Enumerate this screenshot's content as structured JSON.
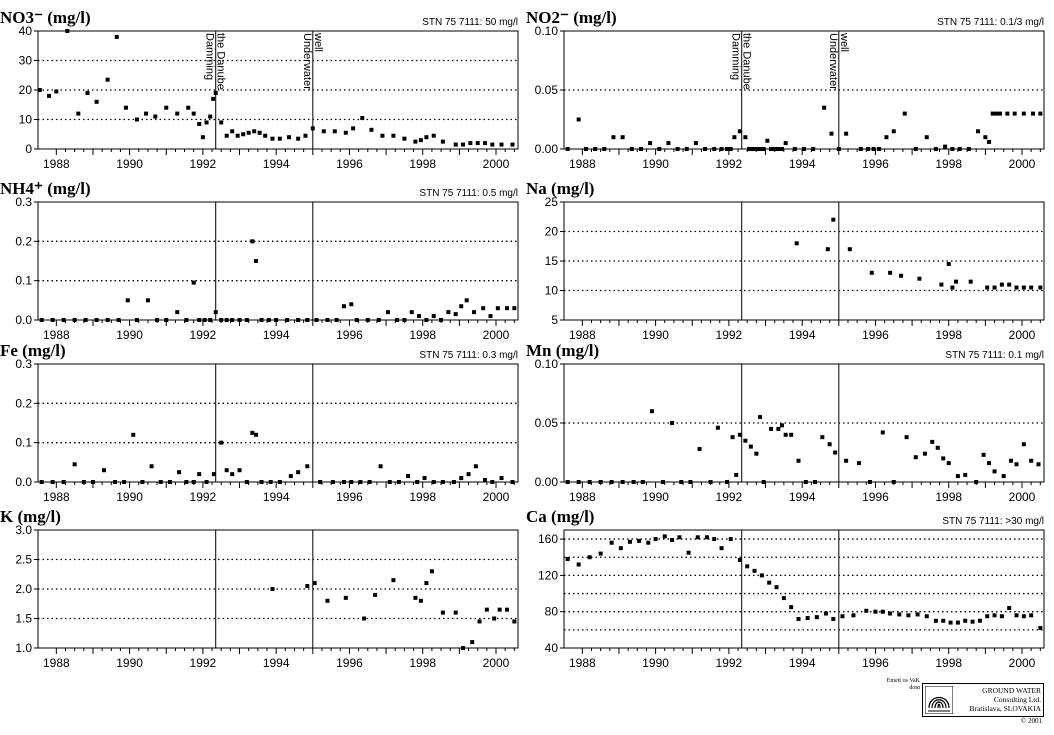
{
  "marker_labels": {
    "damming": "Damming the Danube",
    "well": "Underwater well"
  },
  "footer": {
    "credit": "Emett os VaK dom",
    "company_line1": "GROUND WATER",
    "company_line2": "Consulting Ltd.",
    "company_line3": "Bratislava, SLOVAKIA",
    "copyright": "© 2001",
    "logo_icon": "fingerprint-logo-icon"
  },
  "chart_data": [
    {
      "id": "no3",
      "type": "scatter",
      "title": "NO3⁻ (mg/l)",
      "standard": "STN 75 7111:  50 mg/l",
      "ylim": [
        0,
        40
      ],
      "yticks": [
        0,
        10,
        20,
        30,
        40
      ],
      "ytick_labels": [
        "0",
        "10",
        "20",
        "30",
        "40"
      ],
      "dotted_gridlines": [
        10,
        20,
        30
      ],
      "xlim": [
        1987.5,
        2000.6
      ],
      "xticks": [
        1988,
        1990,
        1992,
        1994,
        1996,
        1998,
        2000
      ],
      "xtick_labels": [
        "1988",
        "1990",
        "1992",
        "1994",
        "1996",
        "1998",
        "2000"
      ],
      "vlines": [
        1992.35,
        1995.0
      ],
      "show_marker_labels": true,
      "x": [
        1987.55,
        1987.8,
        1988.0,
        1988.3,
        1988.6,
        1988.85,
        1989.1,
        1989.4,
        1989.65,
        1989.9,
        1990.2,
        1990.45,
        1990.7,
        1991.0,
        1991.3,
        1991.6,
        1991.75,
        1991.9,
        1992.0,
        1992.1,
        1992.2,
        1992.28,
        1992.35,
        1992.5,
        1992.65,
        1992.8,
        1992.95,
        1993.1,
        1993.25,
        1993.4,
        1993.55,
        1993.7,
        1993.9,
        1994.1,
        1994.35,
        1994.6,
        1994.8,
        1995.0,
        1995.3,
        1995.6,
        1995.9,
        1996.1,
        1996.35,
        1996.6,
        1996.9,
        1997.2,
        1997.5,
        1997.8,
        1997.95,
        1998.1,
        1998.3,
        1998.55,
        1998.9,
        1999.1,
        1999.3,
        1999.5,
        1999.7,
        1999.9,
        2000.15,
        2000.45
      ],
      "y": [
        20,
        18,
        19.5,
        40,
        12,
        19,
        16,
        23.5,
        38,
        14,
        10,
        12,
        11,
        14,
        12,
        14,
        12,
        8.5,
        4,
        9,
        11,
        17,
        19,
        9,
        4.5,
        6,
        4.5,
        5,
        5.5,
        6,
        5.5,
        4.5,
        3.5,
        3.5,
        4,
        3.5,
        4.5,
        7,
        6,
        6,
        5.5,
        7,
        10.5,
        6.5,
        4.5,
        4.5,
        3.5,
        2.5,
        3,
        4,
        4.5,
        2.5,
        1.5,
        1.5,
        2,
        2,
        2,
        1.5,
        1.5,
        1.5
      ]
    },
    {
      "id": "no2",
      "type": "scatter",
      "title": "NO2⁻ (mg/l)",
      "standard": "STN 75 7111:  0.1/3  mg/l",
      "ylim": [
        0,
        0.1
      ],
      "yticks": [
        0,
        0.05,
        0.1
      ],
      "ytick_labels": [
        "0.00",
        "0.05",
        "0.10"
      ],
      "dotted_gridlines": [
        0.05
      ],
      "xlim": [
        1987.5,
        2000.6
      ],
      "xticks": [
        1988,
        1990,
        1992,
        1994,
        1996,
        1998,
        2000
      ],
      "xtick_labels": [
        "1988",
        "1990",
        "1992",
        "1994",
        "1996",
        "1998",
        "2000"
      ],
      "vlines": [
        1992.35,
        1995.0
      ],
      "show_marker_labels": true,
      "x": [
        1987.6,
        1987.9,
        1988.1,
        1988.35,
        1988.6,
        1988.85,
        1989.1,
        1989.35,
        1989.6,
        1989.85,
        1990.1,
        1990.35,
        1990.6,
        1990.85,
        1991.1,
        1991.35,
        1991.6,
        1991.8,
        1991.95,
        1992.05,
        1992.15,
        1992.3,
        1992.45,
        1992.55,
        1992.65,
        1992.75,
        1992.85,
        1992.95,
        1993.05,
        1993.15,
        1993.25,
        1993.35,
        1993.45,
        1993.55,
        1993.8,
        1994.05,
        1994.3,
        1994.6,
        1994.8,
        1995.0,
        1995.2,
        1995.6,
        1995.8,
        1995.95,
        1996.1,
        1996.3,
        1996.5,
        1996.8,
        1997.1,
        1997.4,
        1997.65,
        1997.9,
        1998.1,
        1998.3,
        1998.55,
        1998.8,
        1999.0,
        1999.1,
        1999.2,
        1999.3,
        1999.4,
        1999.6,
        1999.8,
        2000.05,
        2000.3,
        2000.5
      ],
      "y": [
        0.0,
        0.025,
        0.0,
        0.0,
        0.0,
        0.01,
        0.01,
        0.0,
        0.0,
        0.005,
        0.0,
        0.005,
        0.0,
        0.0,
        0.005,
        0.0,
        0.0,
        0.0,
        0.0,
        0.0,
        0.01,
        0.015,
        0.01,
        0.0,
        0.0,
        0.0,
        0.0,
        0.0,
        0.007,
        0.0,
        0.0,
        0.0,
        0.0,
        0.005,
        0.0,
        0.0,
        0.0,
        0.035,
        0.013,
        0.0,
        0.013,
        0.0,
        0.0,
        0.0,
        0.0,
        0.01,
        0.015,
        0.03,
        0.0,
        0.01,
        0.0,
        0.002,
        0.0,
        0.0,
        0.0,
        0.015,
        0.01,
        0.006,
        0.03,
        0.03,
        0.03,
        0.03,
        0.03,
        0.03,
        0.03,
        0.03
      ]
    },
    {
      "id": "nh4",
      "type": "scatter",
      "title": "NH4⁺ (mg/l)",
      "standard": "STN 75 7111:  0.5  mg/l",
      "ylim": [
        0,
        0.3
      ],
      "yticks": [
        0,
        0.1,
        0.2,
        0.3
      ],
      "ytick_labels": [
        "0.0",
        "0.1",
        "0.2",
        "0.3"
      ],
      "dotted_gridlines": [
        0.1,
        0.2
      ],
      "xlim": [
        1987.5,
        2000.6
      ],
      "xticks": [
        1988,
        1990,
        1992,
        1994,
        1996,
        1998,
        2000
      ],
      "xtick_labels": [
        "1988",
        "1990",
        "1992",
        "1994",
        "1996",
        "1998",
        "2000"
      ],
      "vlines": [
        1992.35,
        1995.0
      ],
      "show_marker_labels": false,
      "x": [
        1987.6,
        1987.9,
        1988.2,
        1988.5,
        1988.8,
        1989.1,
        1989.4,
        1989.7,
        1989.95,
        1990.2,
        1990.5,
        1990.75,
        1991.0,
        1991.3,
        1991.55,
        1991.75,
        1991.9,
        1992.05,
        1992.2,
        1992.35,
        1992.5,
        1992.65,
        1992.8,
        1993.0,
        1993.2,
        1993.35,
        1993.45,
        1993.6,
        1993.8,
        1994.0,
        1994.3,
        1994.6,
        1994.85,
        1995.1,
        1995.4,
        1995.65,
        1995.85,
        1996.05,
        1996.2,
        1996.5,
        1996.8,
        1997.05,
        1997.3,
        1997.5,
        1997.7,
        1997.9,
        1998.1,
        1998.3,
        1998.5,
        1998.7,
        1998.9,
        1999.05,
        1999.2,
        1999.4,
        1999.65,
        1999.85,
        2000.05,
        2000.3,
        2000.5
      ],
      "y": [
        0.0,
        0.0,
        0.0,
        0.0,
        0.0,
        0.0,
        0.0,
        0.0,
        0.05,
        0.0,
        0.05,
        0.0,
        0.0,
        0.02,
        0.0,
        0.095,
        0.0,
        0.0,
        0.0,
        0.02,
        0.0,
        0.0,
        0.0,
        0.0,
        0.0,
        0.2,
        0.15,
        0.0,
        0.0,
        0.0,
        0.0,
        0.0,
        0.0,
        0.0,
        0.0,
        0.0,
        0.035,
        0.04,
        0.0,
        0.0,
        0.0,
        0.02,
        0.0,
        0.0,
        0.02,
        0.01,
        0.0,
        0.01,
        0.0,
        0.02,
        0.015,
        0.035,
        0.05,
        0.02,
        0.03,
        0.01,
        0.03,
        0.03,
        0.03
      ]
    },
    {
      "id": "na",
      "type": "scatter",
      "title": "Na (mg/l)",
      "standard": "",
      "ylim": [
        5,
        25
      ],
      "yticks": [
        5,
        10,
        15,
        20,
        25
      ],
      "ytick_labels": [
        "5",
        "10",
        "15",
        "20",
        "25"
      ],
      "dotted_gridlines": [
        10,
        15,
        20
      ],
      "xlim": [
        1987.5,
        2000.6
      ],
      "xticks": [
        1988,
        1990,
        1992,
        1994,
        1996,
        1998,
        2000
      ],
      "xtick_labels": [
        "1988",
        "1990",
        "1992",
        "1994",
        "1996",
        "1998",
        "2000"
      ],
      "vlines": [
        1992.35,
        1995.0
      ],
      "show_marker_labels": false,
      "x": [
        1993.85,
        1994.7,
        1994.85,
        1995.3,
        1995.9,
        1996.4,
        1996.7,
        1997.2,
        1997.8,
        1998.0,
        1998.1,
        1998.2,
        1998.6,
        1999.05,
        1999.25,
        1999.45,
        1999.65,
        1999.85,
        2000.05,
        2000.25,
        2000.5
      ],
      "y": [
        18,
        17,
        22,
        17,
        13,
        13,
        12.5,
        12,
        11,
        14.5,
        10.5,
        11.5,
        11.5,
        10.5,
        10.5,
        11,
        11,
        10.5,
        10.5,
        10.5,
        10.5
      ]
    },
    {
      "id": "fe",
      "type": "scatter",
      "title": "Fe (mg/l)",
      "standard": "STN 75 7111:  0.3  mg/l",
      "ylim": [
        0,
        0.3
      ],
      "yticks": [
        0,
        0.1,
        0.2,
        0.3
      ],
      "ytick_labels": [
        "0.0",
        "0.1",
        "0.2",
        "0.3"
      ],
      "dotted_gridlines": [
        0.1,
        0.2
      ],
      "xlim": [
        1987.5,
        2000.6
      ],
      "xticks": [
        1988,
        1990,
        1992,
        1994,
        1996,
        1998,
        2000
      ],
      "xtick_labels": [
        "1988",
        "1990",
        "1992",
        "1994",
        "1996",
        "1998",
        "2000"
      ],
      "vlines": [
        1992.35,
        1995.0
      ],
      "show_marker_labels": false,
      "x": [
        1987.6,
        1987.9,
        1988.2,
        1988.5,
        1988.75,
        1989.0,
        1989.3,
        1989.6,
        1989.85,
        1990.1,
        1990.35,
        1990.6,
        1990.85,
        1991.1,
        1991.35,
        1991.55,
        1991.75,
        1991.9,
        1992.1,
        1992.3,
        1992.5,
        1992.65,
        1992.8,
        1993.0,
        1993.2,
        1993.35,
        1993.45,
        1993.6,
        1993.85,
        1994.1,
        1994.4,
        1994.6,
        1994.85,
        1995.2,
        1995.55,
        1995.85,
        1996.05,
        1996.3,
        1996.55,
        1996.85,
        1997.1,
        1997.35,
        1997.6,
        1997.85,
        1998.05,
        1998.3,
        1998.55,
        1998.85,
        1999.05,
        1999.25,
        1999.45,
        1999.7,
        1999.9,
        2000.15,
        2000.45
      ],
      "y": [
        0.0,
        0.0,
        0.0,
        0.045,
        0.0,
        0.0,
        0.03,
        0.0,
        0.0,
        0.12,
        0.0,
        0.04,
        0.0,
        0.0,
        0.025,
        0.0,
        0.0,
        0.02,
        0.0,
        0.02,
        0.1,
        0.03,
        0.02,
        0.03,
        0.0,
        0.125,
        0.12,
        0.0,
        0.0,
        0.0,
        0.015,
        0.025,
        0.04,
        0.0,
        0.0,
        0.0,
        0.0,
        0.0,
        0.0,
        0.04,
        0.0,
        0.0,
        0.015,
        0.0,
        0.01,
        0.0,
        0.0,
        0.0,
        0.01,
        0.02,
        0.04,
        0.005,
        0.0,
        0.01,
        0.0
      ]
    },
    {
      "id": "mn",
      "type": "scatter",
      "title": "Mn (mg/l)",
      "standard": "STN 75 7111:  0.1  mg/l",
      "ylim": [
        0,
        0.1
      ],
      "yticks": [
        0,
        0.05,
        0.1
      ],
      "ytick_labels": [
        "0.00",
        "0.05",
        "0.10"
      ],
      "dotted_gridlines": [
        0.05
      ],
      "xlim": [
        1987.5,
        2000.6
      ],
      "xticks": [
        1988,
        1990,
        1992,
        1994,
        1996,
        1998,
        2000
      ],
      "xtick_labels": [
        "1988",
        "1990",
        "1992",
        "1994",
        "1996",
        "1998",
        "2000"
      ],
      "vlines": [
        1992.35,
        1995.0
      ],
      "show_marker_labels": false,
      "x": [
        1987.6,
        1987.9,
        1988.2,
        1988.5,
        1988.8,
        1989.1,
        1989.4,
        1989.65,
        1989.9,
        1990.2,
        1990.45,
        1990.7,
        1990.95,
        1991.2,
        1991.5,
        1991.7,
        1991.95,
        1992.1,
        1992.2,
        1992.3,
        1992.45,
        1992.6,
        1992.75,
        1992.85,
        1992.95,
        1993.15,
        1993.35,
        1993.45,
        1993.55,
        1993.7,
        1993.9,
        1994.1,
        1994.35,
        1994.55,
        1994.75,
        1994.9,
        1995.2,
        1995.55,
        1995.85,
        1996.2,
        1996.5,
        1996.85,
        1997.1,
        1997.35,
        1997.55,
        1997.7,
        1997.85,
        1998.0,
        1998.25,
        1998.45,
        1998.75,
        1998.95,
        1999.1,
        1999.25,
        1999.5,
        1999.7,
        1999.85,
        2000.05,
        2000.25,
        2000.45
      ],
      "y": [
        0.0,
        0.0,
        0.0,
        0.0,
        0.0,
        0.0,
        0.0,
        0.0,
        0.06,
        0.0,
        0.05,
        0.0,
        0.0,
        0.028,
        0.0,
        0.046,
        0.0,
        0.038,
        0.006,
        0.04,
        0.035,
        0.03,
        0.024,
        0.055,
        0.0,
        0.045,
        0.045,
        0.048,
        0.04,
        0.04,
        0.018,
        0.0,
        0.0,
        0.038,
        0.032,
        0.025,
        0.018,
        0.016,
        0.0,
        0.042,
        0.0,
        0.038,
        0.021,
        0.024,
        0.034,
        0.029,
        0.02,
        0.016,
        0.005,
        0.006,
        0.0,
        0.023,
        0.016,
        0.009,
        0.005,
        0.018,
        0.015,
        0.032,
        0.018,
        0.015
      ]
    },
    {
      "id": "k",
      "type": "scatter",
      "title": "K (mg/l)",
      "standard": "",
      "ylim": [
        1.0,
        3.0
      ],
      "yticks": [
        1.0,
        1.5,
        2.0,
        2.5,
        3.0
      ],
      "ytick_labels": [
        "1.0",
        "1.5",
        "2.0",
        "2.5",
        "3.0"
      ],
      "dotted_gridlines": [
        1.5,
        2.0,
        2.5
      ],
      "xlim": [
        1987.5,
        2000.6
      ],
      "xticks": [
        1988,
        1990,
        1992,
        1994,
        1996,
        1998,
        2000
      ],
      "xtick_labels": [
        "1988",
        "1990",
        "1992",
        "1994",
        "1996",
        "1998",
        "2000"
      ],
      "vlines": [
        1992.35,
        1995.0
      ],
      "show_marker_labels": false,
      "x": [
        1993.9,
        1994.85,
        1995.05,
        1995.4,
        1995.9,
        1996.4,
        1996.7,
        1997.2,
        1997.8,
        1997.95,
        1998.1,
        1998.25,
        1998.55,
        1998.9,
        1999.1,
        1999.35,
        1999.55,
        1999.75,
        1999.95,
        2000.1,
        2000.3,
        2000.5
      ],
      "y": [
        2.0,
        2.05,
        2.1,
        1.8,
        1.85,
        1.5,
        1.9,
        2.15,
        1.85,
        1.8,
        2.1,
        2.3,
        1.6,
        1.6,
        1.0,
        1.1,
        1.45,
        1.65,
        1.5,
        1.65,
        1.65,
        1.45
      ]
    },
    {
      "id": "ca",
      "type": "scatter",
      "title": "Ca (mg/l)",
      "standard": "STN 75 7111:  >30  mg/l",
      "ylim": [
        40,
        170
      ],
      "yticks": [
        40,
        80,
        120,
        160
      ],
      "ytick_labels": [
        "40",
        "80",
        "120",
        "160"
      ],
      "dotted_gridlines": [
        60,
        80,
        100,
        120,
        140,
        160
      ],
      "xlim": [
        1987.5,
        2000.6
      ],
      "xticks": [
        1988,
        1990,
        1992,
        1994,
        1996,
        1998,
        2000
      ],
      "xtick_labels": [
        "1988",
        "1990",
        "1992",
        "1994",
        "1996",
        "1998",
        "2000"
      ],
      "vlines": [
        1992.35,
        1995.0
      ],
      "show_marker_labels": false,
      "x": [
        1987.6,
        1987.9,
        1988.2,
        1988.5,
        1988.8,
        1989.05,
        1989.3,
        1989.55,
        1989.8,
        1990.0,
        1990.25,
        1990.45,
        1990.65,
        1990.9,
        1991.15,
        1991.4,
        1991.6,
        1991.8,
        1992.05,
        1992.3,
        1992.5,
        1992.7,
        1992.9,
        1993.1,
        1993.3,
        1993.5,
        1993.7,
        1993.9,
        1994.15,
        1994.4,
        1994.65,
        1994.85,
        1995.1,
        1995.4,
        1995.75,
        1996.0,
        1996.2,
        1996.4,
        1996.65,
        1996.9,
        1997.15,
        1997.4,
        1997.65,
        1997.85,
        1998.05,
        1998.25,
        1998.45,
        1998.65,
        1998.85,
        1999.05,
        1999.25,
        1999.45,
        1999.65,
        1999.85,
        2000.05,
        2000.25,
        2000.5
      ],
      "y": [
        138,
        132,
        140,
        144,
        156,
        150,
        157,
        158,
        156,
        160,
        163,
        159,
        162,
        145,
        162,
        162,
        160,
        150,
        160,
        137,
        130,
        125,
        120,
        112,
        107,
        95,
        85,
        72,
        73,
        74,
        78,
        72,
        75,
        76,
        81,
        80,
        80,
        78,
        77,
        76,
        77,
        75,
        70,
        70,
        68,
        68,
        70,
        69,
        70,
        75,
        76,
        75,
        84,
        76,
        75,
        76,
        62
      ]
    }
  ]
}
